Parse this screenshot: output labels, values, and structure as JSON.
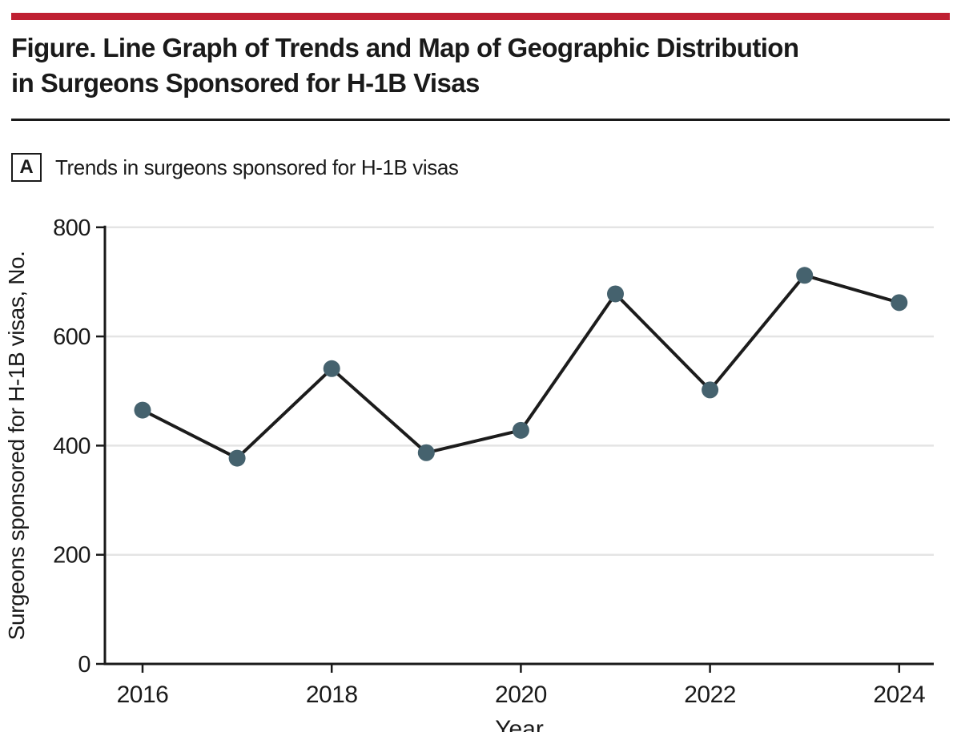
{
  "figure": {
    "title_line1": "Figure. Line Graph of Trends and Map of Geographic Distribution",
    "title_line2": "in Surgeons Sponsored for H-1B Visas"
  },
  "panel": {
    "label": "A",
    "caption": "Trends in surgeons sponsored for H-1B visas"
  },
  "chart_data": {
    "type": "line",
    "x": [
      2016,
      2017,
      2018,
      2019,
      2020,
      2021,
      2022,
      2023,
      2024
    ],
    "values": [
      465,
      377,
      541,
      387,
      428,
      678,
      502,
      712,
      662
    ],
    "series_name": "Surgeons sponsored for H-1B visas",
    "title": "Trends in surgeons sponsored for H-1B visas",
    "xlabel": "Year",
    "ylabel": "Surgeons sponsored for H-1B visas, No.",
    "ylim": [
      0,
      800
    ],
    "yticks": [
      0,
      200,
      400,
      600,
      800
    ],
    "xticks": [
      2016,
      2018,
      2020,
      2022,
      2024
    ],
    "grid": true,
    "legend": false
  },
  "colors": {
    "accent_rule": "#bf2032",
    "line": "#1c1c1c",
    "marker": "#45626e",
    "grid": "#e4e4e4",
    "axis": "#1a1a1a"
  }
}
